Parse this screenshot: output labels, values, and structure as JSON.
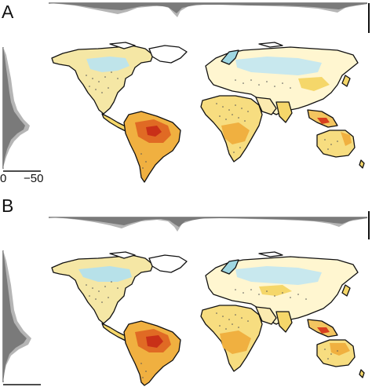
{
  "panels": [
    {
      "label": "A",
      "side_axis_ticks": [
        "0",
        "−50"
      ],
      "colors": {
        "warm_strong": "#d93a1c",
        "warm_mid": "#f0a030",
        "warm_light": "#f5d76a",
        "cool": "#8fd3e0",
        "neutral": "#fffbe6",
        "marginal": "#7a7a7a",
        "marginal_light": "#b5b5b5"
      }
    },
    {
      "label": "B",
      "side_axis_ticks": [],
      "colors": {
        "warm_strong": "#d93a1c",
        "warm_mid": "#f0a030",
        "warm_light": "#f5d76a",
        "cool": "#8fd3e0",
        "neutral": "#fffbe6",
        "marginal": "#7a7a7a",
        "marginal_light": "#b5b5b5"
      }
    }
  ]
}
